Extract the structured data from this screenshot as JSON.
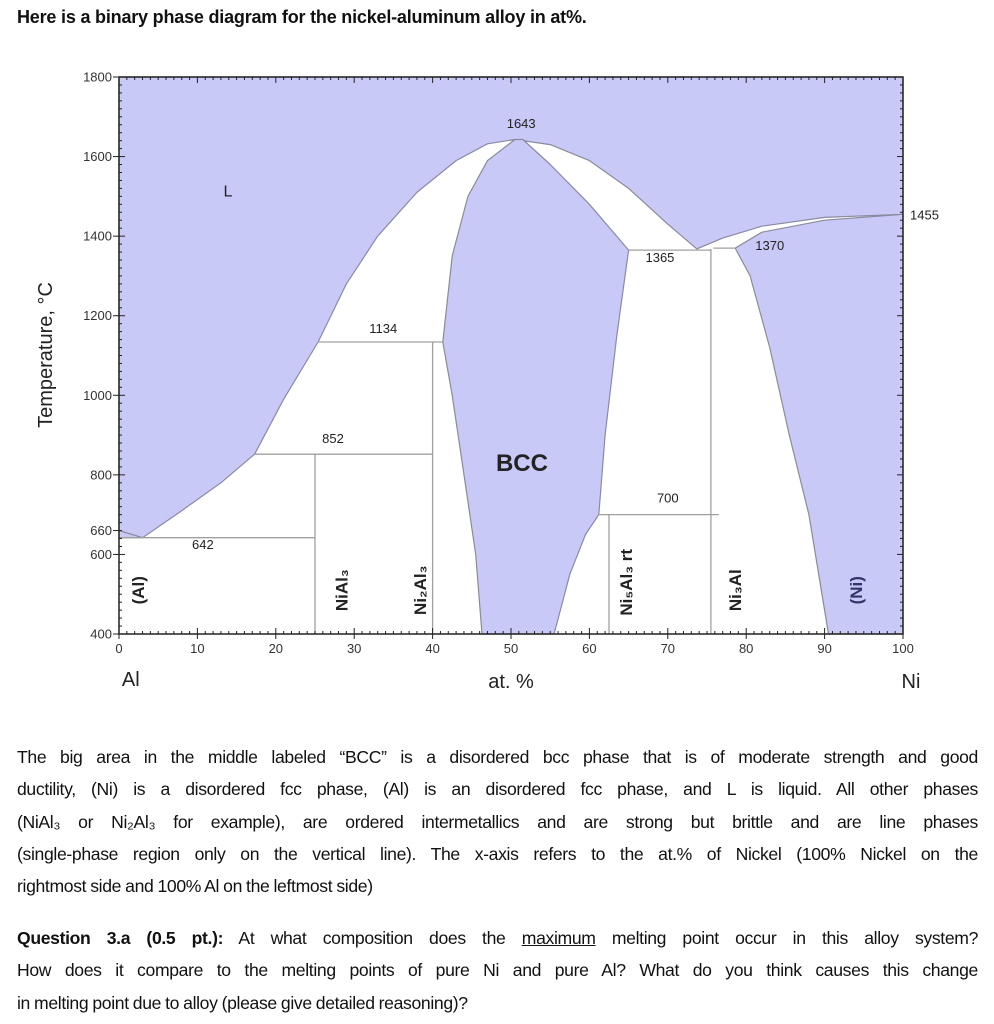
{
  "title": "Here is a binary phase diagram for the nickel-aluminum alloy in at%.",
  "chart_data": {
    "type": "phase-diagram",
    "ylabel": "Temperature, °C",
    "xlabel": "at. %",
    "x_left_label": "Al",
    "x_right_label": "Ni",
    "xlim": [
      0,
      100
    ],
    "ylim": [
      400,
      1800
    ],
    "xticks": [
      0,
      10,
      20,
      30,
      40,
      50,
      60,
      70,
      80,
      90,
      100
    ],
    "yticks": [
      400,
      600,
      660,
      800,
      1000,
      1200,
      1400,
      1600,
      1800
    ],
    "fill_color": "#c9c9f7",
    "line_color": "#8a8aa0",
    "regions": [
      {
        "name": "L",
        "points": [
          [
            0,
            1800
          ],
          [
            0,
            660
          ],
          [
            3,
            642
          ],
          [
            8,
            710
          ],
          [
            13,
            780
          ],
          [
            17.3,
            852
          ],
          [
            21,
            990
          ],
          [
            25.4,
            1134
          ],
          [
            29,
            1280
          ],
          [
            33,
            1400
          ],
          [
            38,
            1510
          ],
          [
            43,
            1590
          ],
          [
            47,
            1632
          ],
          [
            50.5,
            1643
          ],
          [
            55,
            1630
          ],
          [
            60,
            1590
          ],
          [
            65,
            1520
          ],
          [
            70,
            1430
          ],
          [
            73.7,
            1368
          ],
          [
            77,
            1395
          ],
          [
            82,
            1425
          ],
          [
            90,
            1447
          ],
          [
            100,
            1455
          ],
          [
            100,
            1800
          ]
        ]
      },
      {
        "name": "BCC",
        "points": [
          [
            50.5,
            1643
          ],
          [
            47,
            1590
          ],
          [
            44.5,
            1500
          ],
          [
            42.5,
            1350
          ],
          [
            41.3,
            1134
          ],
          [
            42.5,
            1000
          ],
          [
            44,
            800
          ],
          [
            45.5,
            600
          ],
          [
            46.3,
            400
          ],
          [
            55.5,
            400
          ],
          [
            57.5,
            550
          ],
          [
            59.5,
            650
          ],
          [
            61.2,
            700
          ],
          [
            62,
            900
          ],
          [
            63.5,
            1150
          ],
          [
            65,
            1365
          ],
          [
            60,
            1480
          ],
          [
            55,
            1580
          ],
          [
            51.5,
            1643
          ]
        ]
      },
      {
        "name": "(Ni)",
        "points": [
          [
            78.6,
            1370
          ],
          [
            80.5,
            1300
          ],
          [
            83,
            1120
          ],
          [
            85.5,
            900
          ],
          [
            88,
            700
          ],
          [
            90.5,
            400
          ],
          [
            100,
            400
          ],
          [
            100,
            1455
          ],
          [
            90,
            1440
          ],
          [
            82,
            1410
          ]
        ]
      },
      {
        "name": "(Al)",
        "points": [
          [
            0,
            660
          ],
          [
            0,
            642
          ],
          [
            0.3,
            642
          ],
          [
            3,
            642
          ]
        ]
      }
    ],
    "lines": [
      {
        "name": "eutectic-642",
        "points": [
          [
            0,
            642
          ],
          [
            25,
            642
          ]
        ]
      },
      {
        "name": "peritectic-852",
        "points": [
          [
            17.3,
            852
          ],
          [
            40,
            852
          ]
        ]
      },
      {
        "name": "peritectic-1134",
        "points": [
          [
            25.4,
            1134
          ],
          [
            41.3,
            1134
          ]
        ]
      },
      {
        "name": "NiAl3-line",
        "points": [
          [
            25,
            400
          ],
          [
            25,
            852
          ]
        ]
      },
      {
        "name": "Ni2Al3-line",
        "points": [
          [
            40,
            400
          ],
          [
            40,
            1134
          ]
        ]
      },
      {
        "name": "Ni5Al3-line",
        "points": [
          [
            62.5,
            400
          ],
          [
            62.5,
            700
          ]
        ]
      },
      {
        "name": "reaction-700",
        "points": [
          [
            61.2,
            700
          ],
          [
            76.5,
            700
          ]
        ]
      },
      {
        "name": "Ni3Al-line",
        "points": [
          [
            75.5,
            400
          ],
          [
            75.5,
            1368
          ]
        ]
      },
      {
        "name": "peritectic-1365",
        "points": [
          [
            65,
            1365
          ],
          [
            75.5,
            1365
          ]
        ]
      },
      {
        "name": "peritectic-1370",
        "points": [
          [
            75.8,
            1370
          ],
          [
            78.6,
            1370
          ]
        ]
      }
    ],
    "annotations": [
      {
        "text": "L",
        "x": 13.9,
        "y": 1500,
        "size": 16
      },
      {
        "text": "1643",
        "x": 51.3,
        "y": 1672,
        "size": 13
      },
      {
        "text": "1134",
        "x": 33.7,
        "y": 1157,
        "size": 13
      },
      {
        "text": "852",
        "x": 27.3,
        "y": 880,
        "size": 13
      },
      {
        "text": "642",
        "x": 10.7,
        "y": 614,
        "size": 13
      },
      {
        "text": "1365",
        "x": 69,
        "y": 1335,
        "size": 13
      },
      {
        "text": "1370",
        "x": 83,
        "y": 1365,
        "size": 13
      },
      {
        "text": "700",
        "x": 70,
        "y": 730,
        "size": 13
      },
      {
        "text": "BCC",
        "x": 51.4,
        "y": 810,
        "size": 24,
        "bold": true
      }
    ],
    "right_label": {
      "text": "1455",
      "y": 1455
    },
    "vertical_labels": [
      {
        "text": "(Al)",
        "x": 2.4,
        "y": 510
      },
      {
        "text": "NiAl₃",
        "x": 28.4,
        "y": 510
      },
      {
        "text": "Ni₂Al₃",
        "x": 38.4,
        "y": 510
      },
      {
        "text": "Ni₅Al₃ rt",
        "x": 64.7,
        "y": 530
      },
      {
        "text": "Ni₃Al",
        "x": 78.6,
        "y": 510
      },
      {
        "text": "(Ni)",
        "x": 94,
        "y": 510
      }
    ]
  },
  "paragraph1": [
    "The big area in the middle labeled “BCC” is a disordered bcc phase that is of moderate strength and good",
    "ductility, (Ni) is a disordered fcc phase, (Al) is an disordered fcc phase, and L is liquid.  All other phases",
    "(NiAl₃ or Ni₂Al₃ for example), are ordered intermetallics and are strong but brittle and are line phases",
    "(single-phase region only on the vertical line).  The x-axis refers to the at.% of Nickel (100% Nickel on the",
    "rightmost side and 100% Al on the leftmost side)"
  ],
  "question": {
    "label": "Question 3.a (0.5 pt.):",
    "line1_before": " At what composition does the ",
    "line1_underlined": "maximum",
    "line1_after": " melting point occur in this alloy system?",
    "line2": "How does it compare to the melting points of pure Ni and pure Al?  What do you think causes this change",
    "line3": "in melting point due to alloy (please give detailed reasoning)?"
  }
}
